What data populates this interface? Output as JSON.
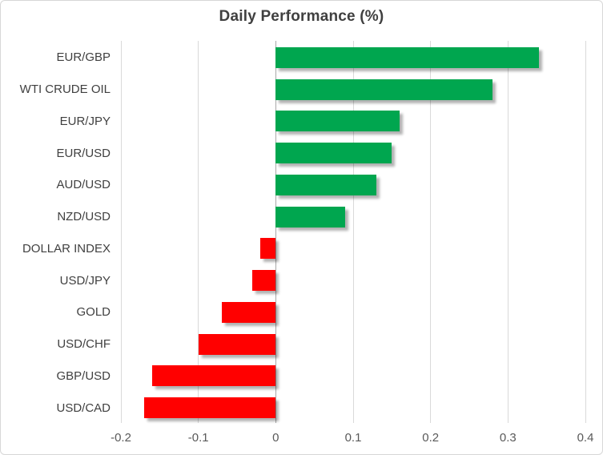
{
  "chart_data": {
    "type": "bar",
    "orientation": "horizontal",
    "title": "Daily Performance (%)",
    "categories": [
      "EUR/GBP",
      "WTI CRUDE OIL",
      "EUR/JPY",
      "EUR/USD",
      "AUD/USD",
      "NZD/USD",
      "DOLLAR INDEX",
      "USD/JPY",
      "GOLD",
      "USD/CHF",
      "GBP/USD",
      "USD/CAD"
    ],
    "values": [
      0.34,
      0.28,
      0.16,
      0.15,
      0.13,
      0.09,
      -0.02,
      -0.03,
      -0.07,
      -0.1,
      -0.16,
      -0.17
    ],
    "xlim": [
      -0.2,
      0.4
    ],
    "xticks": [
      -0.2,
      -0.1,
      0,
      0.1,
      0.2,
      0.3,
      0.4
    ],
    "xtick_labels": [
      "-0.2",
      "-0.1",
      "0",
      "0.1",
      "0.2",
      "0.3",
      "0.4"
    ],
    "xlabel": "",
    "ylabel": "",
    "grid": "vertical",
    "legend": "none",
    "colors": {
      "positive_bar": "#00A64F",
      "negative_bar": "#FF0000",
      "gridline": "#D9D9D9",
      "zero_axis_line": "#A9A9A9",
      "title_text": "#404040",
      "category_label_text": "#404040",
      "tick_label_text": "#595959",
      "chart_border": "#D7D7D7",
      "background": "#FFFFFF"
    }
  }
}
